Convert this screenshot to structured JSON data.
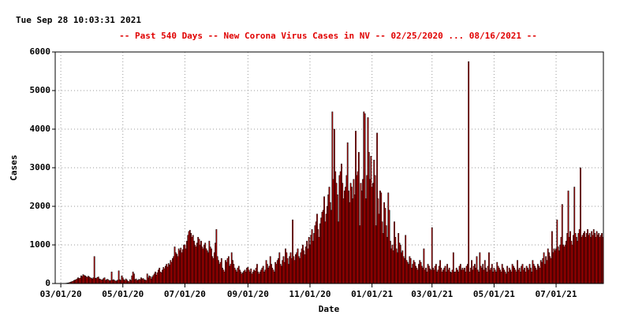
{
  "chart_data": {
    "type": "bar",
    "timestamp": "Tue Sep 28 10:03:31 2021",
    "title": "--  Past 540 Days  --  New Corona Virus Cases in NV  -- 02/25/2020 ... 08/16/2021  --",
    "x_label": "Date",
    "y_label": "Cases",
    "color": "#c80000",
    "grid": true,
    "ylim": [
      0,
      6000
    ],
    "yticks": [
      0,
      1000,
      2000,
      3000,
      4000,
      5000,
      6000
    ],
    "xticks": [
      {
        "value": 5,
        "label": "03/01/20"
      },
      {
        "value": 66,
        "label": "05/01/20"
      },
      {
        "value": 127,
        "label": "07/01/20"
      },
      {
        "value": 189,
        "label": "09/01/20"
      },
      {
        "value": 250,
        "label": "11/01/20"
      },
      {
        "value": 311,
        "label": "01/01/21"
      },
      {
        "value": 370,
        "label": "03/01/21"
      },
      {
        "value": 431,
        "label": "05/01/21"
      },
      {
        "value": 492,
        "label": "07/01/21"
      }
    ],
    "values": [
      0,
      0,
      0,
      0,
      0,
      1,
      1,
      2,
      3,
      5,
      7,
      10,
      15,
      20,
      30,
      40,
      50,
      60,
      80,
      90,
      100,
      120,
      150,
      130,
      140,
      200,
      180,
      230,
      210,
      200,
      180,
      160,
      190,
      170,
      150,
      140,
      120,
      150,
      700,
      140,
      130,
      160,
      170,
      120,
      110,
      90,
      100,
      130,
      150,
      80,
      100,
      110,
      90,
      70,
      80,
      300,
      90,
      100,
      80,
      60,
      70,
      90,
      330,
      100,
      80,
      200,
      150,
      100,
      80,
      120,
      90,
      60,
      50,
      100,
      80,
      200,
      300,
      250,
      100,
      120,
      80,
      90,
      110,
      100,
      150,
      120,
      130,
      100,
      90,
      80,
      250,
      150,
      200,
      180,
      120,
      170,
      210,
      250,
      300,
      220,
      280,
      350,
      400,
      300,
      280,
      350,
      420,
      380,
      450,
      500,
      430,
      520,
      480,
      600,
      550,
      650,
      700,
      950,
      800,
      760,
      700,
      900,
      850,
      920,
      800,
      880,
      1000,
      1000,
      900,
      1100,
      1250,
      1350,
      1380,
      1300,
      1200,
      1250,
      1100,
      1000,
      950,
      1050,
      1200,
      1150,
      1000,
      1100,
      950,
      900,
      1000,
      1050,
      900,
      850,
      800,
      1100,
      950,
      900,
      700,
      650,
      800,
      1050,
      1400,
      700,
      600,
      500,
      550,
      650,
      400,
      350,
      300,
      600,
      550,
      650,
      700,
      450,
      500,
      800,
      600,
      500,
      400,
      350,
      300,
      400,
      450,
      350,
      300,
      250,
      280,
      320,
      350,
      300,
      400,
      420,
      350,
      300,
      380,
      250,
      300,
      350,
      320,
      400,
      500,
      300,
      250,
      300,
      350,
      400,
      450,
      300,
      350,
      600,
      500,
      400,
      450,
      700,
      500,
      400,
      350,
      300,
      550,
      500,
      600,
      650,
      800,
      500,
      450,
      600,
      700,
      550,
      900,
      800,
      650,
      500,
      700,
      800,
      650,
      1650,
      700,
      600,
      750,
      800,
      900,
      700,
      650,
      800,
      900,
      1000,
      850,
      750,
      950,
      1100,
      900,
      1200,
      1000,
      1250,
      1400,
      1100,
      1300,
      1500,
      1600,
      1800,
      1400,
      1200,
      1550,
      1700,
      1850,
      1900,
      2250,
      1600,
      1800,
      2000,
      2300,
      2500,
      2100,
      1900,
      4450,
      2700,
      4000,
      2900,
      2600,
      2300,
      1600,
      2800,
      2900,
      3100,
      2600,
      2200,
      2400,
      2500,
      2800,
      3650,
      2400,
      2100,
      2600,
      2500,
      2200,
      2700,
      2300,
      3950,
      2800,
      2900,
      3400,
      1500,
      2600,
      2400,
      2700,
      4450,
      4400,
      2200,
      2800,
      4300,
      3400,
      2700,
      3300,
      2500,
      2600,
      3200,
      2800,
      1500,
      3900,
      2200,
      1800,
      2400,
      2350,
      1600,
      1300,
      2100,
      1950,
      1500,
      1200,
      2350,
      1900,
      1100,
      900,
      1000,
      850,
      1600,
      1200,
      900,
      800,
      1300,
      1050,
      1000,
      800,
      850,
      700,
      650,
      1250,
      600,
      550,
      500,
      700,
      650,
      400,
      500,
      600,
      550,
      450,
      400,
      350,
      500,
      600,
      550,
      450,
      400,
      900,
      350,
      400,
      300,
      500,
      450,
      380,
      350,
      1450,
      400,
      350,
      450,
      500,
      300,
      350,
      450,
      600,
      400,
      300,
      350,
      400,
      450,
      300,
      500,
      350,
      400,
      300,
      280,
      350,
      800,
      300,
      300,
      400,
      350,
      300,
      450,
      500,
      350,
      400,
      350,
      400,
      300,
      450,
      500,
      5750,
      300,
      400,
      600,
      350,
      450,
      500,
      400,
      700,
      350,
      300,
      800,
      450,
      400,
      500,
      350,
      600,
      400,
      300,
      450,
      800,
      350,
      400,
      500,
      300,
      400,
      350,
      300,
      550,
      450,
      400,
      350,
      300,
      500,
      400,
      350,
      300,
      250,
      450,
      300,
      400,
      350,
      300,
      500,
      450,
      400,
      350,
      300,
      600,
      350,
      400,
      300,
      450,
      500,
      350,
      400,
      300,
      450,
      400,
      350,
      500,
      400,
      300,
      600,
      500,
      450,
      400,
      350,
      500,
      450,
      400,
      600,
      550,
      650,
      800,
      500,
      700,
      600,
      900,
      800,
      700,
      650,
      1350,
      800,
      900,
      850,
      900,
      1650,
      950,
      850,
      1000,
      1200,
      2050,
      1000,
      950,
      1000,
      1100,
      1300,
      2400,
      1200,
      1350,
      1100,
      1000,
      1250,
      2500,
      1300,
      1200,
      1100,
      1300,
      1400,
      3000,
      1200,
      1250,
      1300,
      1350,
      1200,
      1300,
      1400,
      1250,
      1300,
      1200,
      1350,
      1250,
      1400,
      1300,
      1200,
      1350,
      1250,
      1300,
      1200,
      1250,
      1300,
      1200
    ]
  }
}
